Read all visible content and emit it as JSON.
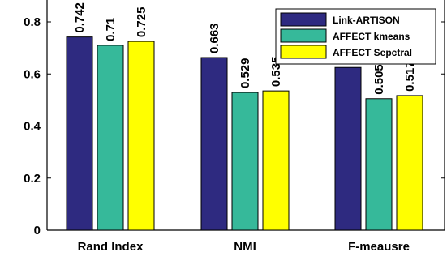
{
  "chart_data": {
    "type": "bar",
    "categories": [
      "Rand Index",
      "NMI",
      "F-meausre"
    ],
    "series": [
      {
        "name": "Link-ARTISON",
        "values": [
          0.742,
          0.663,
          0.625
        ],
        "labels": [
          "0.742",
          "0.663",
          ""
        ],
        "color": "#2e2a80"
      },
      {
        "name": "AFFECT kmeans",
        "values": [
          0.71,
          0.529,
          0.505
        ],
        "labels": [
          "0.71",
          "0.529",
          "0.505"
        ],
        "color": "#36b99a"
      },
      {
        "name": "AFFECT Sepctral",
        "values": [
          0.725,
          0.535,
          0.517
        ],
        "labels": [
          "0.725",
          "0.535",
          "0.517"
        ],
        "color": "#ffff00"
      }
    ],
    "y_ticks": [
      "0",
      "0.2",
      "0.4",
      "0.6",
      "0.8"
    ],
    "ylim": [
      0,
      0.85
    ],
    "legend_position": "top-right",
    "grid": false
  }
}
